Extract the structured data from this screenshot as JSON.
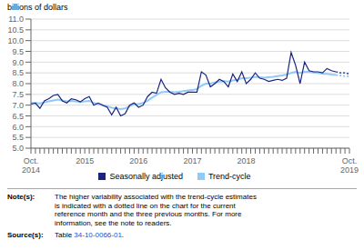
{
  "chart_data": {
    "type": "line",
    "ylabel": "billions of dollars",
    "categories": [
      "Oct.\n2014",
      null,
      null,
      null,
      null,
      null,
      null,
      null,
      null,
      null,
      null,
      null,
      "2015",
      null,
      null,
      null,
      null,
      null,
      null,
      null,
      null,
      null,
      null,
      null,
      "2016",
      null,
      null,
      null,
      null,
      null,
      null,
      null,
      null,
      null,
      null,
      null,
      "2017",
      null,
      null,
      null,
      null,
      null,
      null,
      null,
      null,
      null,
      null,
      null,
      "2018",
      null,
      null,
      null,
      null,
      null,
      null,
      null,
      null,
      null,
      null,
      null,
      null,
      null,
      null,
      null,
      null,
      null,
      null,
      null,
      null,
      null,
      null,
      "Oct.\n2019"
    ],
    "series": [
      {
        "name": "Seasonally adjusted",
        "color": "#1a237e",
        "line_style": "solid",
        "values": [
          7.05,
          7.1,
          6.85,
          7.2,
          7.3,
          7.45,
          7.5,
          7.2,
          7.1,
          7.3,
          7.25,
          7.15,
          7.3,
          7.4,
          7.0,
          7.1,
          7.0,
          6.9,
          6.55,
          6.9,
          6.5,
          6.6,
          7.0,
          7.1,
          6.9,
          7.0,
          7.4,
          7.6,
          7.55,
          8.2,
          7.8,
          7.6,
          7.5,
          7.55,
          7.5,
          7.6,
          7.6,
          7.6,
          8.55,
          8.4,
          7.85,
          8.0,
          8.2,
          8.1,
          7.85,
          8.45,
          8.1,
          8.55,
          8.0,
          8.2,
          8.5,
          8.25,
          8.2,
          8.1,
          8.15,
          8.2,
          8.15,
          8.25,
          9.45,
          8.85,
          8.0,
          9.0,
          8.6,
          8.55,
          8.55,
          8.5,
          8.7,
          8.6,
          8.55,
          8.5,
          8.5,
          8.45
        ]
      },
      {
        "name": "Trend-cycle",
        "color": "#90caf9",
        "line_style": "solid",
        "values": [
          7.1,
          7.1,
          7.08,
          7.12,
          7.18,
          7.22,
          7.26,
          7.22,
          7.18,
          7.2,
          7.18,
          7.15,
          7.18,
          7.2,
          7.1,
          7.05,
          7.0,
          6.95,
          6.88,
          6.85,
          6.82,
          6.85,
          6.95,
          7.05,
          7.05,
          7.1,
          7.2,
          7.35,
          7.48,
          7.6,
          7.62,
          7.62,
          7.6,
          7.62,
          7.65,
          7.68,
          7.7,
          7.75,
          7.9,
          8.0,
          8.0,
          8.05,
          8.1,
          8.12,
          8.1,
          8.15,
          8.18,
          8.25,
          8.25,
          8.28,
          8.32,
          8.3,
          8.28,
          8.3,
          8.32,
          8.35,
          8.38,
          8.42,
          8.5,
          8.55,
          8.5,
          8.55,
          8.55,
          8.52,
          8.5,
          8.45,
          8.45,
          8.42,
          8.4,
          8.38,
          8.35,
          8.35
        ]
      }
    ],
    "dotted_start": 68,
    "ylim": [
      5.0,
      11.0
    ],
    "yticks": [
      {
        "value": 5.0,
        "label": "5.0"
      },
      {
        "value": 5.5,
        "label": "5.5"
      },
      {
        "value": 6.0,
        "label": "6.0"
      },
      {
        "value": 6.5,
        "label": "6.5"
      },
      {
        "value": 7.0,
        "label": "7.0"
      },
      {
        "value": 7.5,
        "label": "7.5"
      },
      {
        "value": 8.0,
        "label": "8.0"
      },
      {
        "value": 8.5,
        "label": "8.5"
      },
      {
        "value": 9.0,
        "label": "9.0"
      },
      {
        "value": 9.5,
        "label": "9.5"
      },
      {
        "value": 10.0,
        "label": "10.0"
      },
      {
        "value": 10.5,
        "label": "10.5"
      },
      {
        "value": 11.0,
        "label": "11.0"
      }
    ],
    "grid": true,
    "legend": "bottom",
    "note_label": "Note(s):",
    "note": "The higher variability associated with the trend-cycle estimates\nis indicated with a dotted line on the chart for the current\nreference month and the three previous months. For more\ninformation, see the note to readers.",
    "source_label": "Source(s):",
    "source": {
      "prefix": "Table ",
      "link": "34-10-0066-01",
      "suffix": ".",
      "link_color": "#1155cc"
    }
  }
}
